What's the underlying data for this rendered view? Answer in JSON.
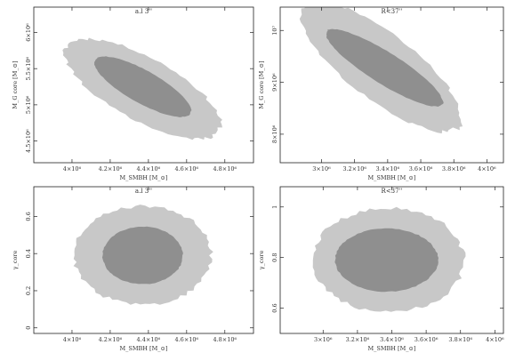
{
  "colors": {
    "outer_region": "#c8c8c8",
    "inner_region": "#8f8f8f",
    "frame": "#222222",
    "text": "#333333",
    "background": "#ffffff"
  },
  "chart_data": [
    {
      "type": "contour",
      "title": "a.l 3''",
      "xlabel": "M_SMBH [M_⊙]",
      "ylabel": "M_G core [M_⊙]",
      "x_ticks": [
        {
          "value": 4.0,
          "label": "4×10⁶"
        },
        {
          "value": 4.2,
          "label": "4.2×10⁶"
        },
        {
          "value": 4.4,
          "label": "4.4×10⁶"
        },
        {
          "value": 4.6,
          "label": "4.6×10⁶"
        },
        {
          "value": 4.8,
          "label": "4.8×10⁶"
        }
      ],
      "y_ticks": [
        {
          "value": 4.5,
          "label": "4.5×10⁶"
        },
        {
          "value": 5.0,
          "label": "5×10⁶"
        },
        {
          "value": 5.5,
          "label": "5.5×10⁶"
        },
        {
          "value": 6.0,
          "label": "6×10⁶"
        }
      ],
      "xlim": [
        3.8,
        4.95
      ],
      "ylim": [
        4.2,
        6.35
      ],
      "contours": [
        {
          "level": "outer",
          "center": [
            4.37,
            5.22
          ],
          "semi_major": [
            0.4,
            -0.58
          ],
          "semi_minor_len": 0.165
        },
        {
          "level": "inner",
          "center": [
            4.37,
            5.25
          ],
          "semi_major": [
            0.25,
            -0.37
          ],
          "semi_minor_len": 0.085
        }
      ]
    },
    {
      "type": "contour",
      "title": "R<37''",
      "xlabel": "M_SMBH [M_⊙]",
      "ylabel": "M_G core [M_⊙]",
      "x_ticks": [
        {
          "value": 3.0,
          "label": "3×10⁶"
        },
        {
          "value": 3.2,
          "label": "3.2×10⁶"
        },
        {
          "value": 3.4,
          "label": "3.4×10⁶"
        },
        {
          "value": 3.6,
          "label": "3.6×10⁶"
        },
        {
          "value": 3.8,
          "label": "3.8×10⁶"
        },
        {
          "value": 4.0,
          "label": "4×10⁶"
        }
      ],
      "y_ticks": [
        {
          "value": 8.0,
          "label": "8×10⁶"
        },
        {
          "value": 9.0,
          "label": "9×10⁶"
        },
        {
          "value": 10.0,
          "label": "10⁷"
        }
      ],
      "xlim": [
        2.75,
        4.1
      ],
      "ylim": [
        7.45,
        10.45
      ],
      "contours": [
        {
          "level": "outer",
          "center": [
            3.36,
            9.3
          ],
          "semi_major": [
            0.47,
            -1.15
          ],
          "semi_minor_len": 0.2
        },
        {
          "level": "inner",
          "center": [
            3.38,
            9.28
          ],
          "semi_major": [
            0.35,
            -0.7
          ],
          "semi_minor_len": 0.095
        }
      ]
    },
    {
      "type": "contour",
      "title": "a.l 3''",
      "xlabel": "M_SMBH [M_⊙]",
      "ylabel": "γ_core",
      "x_ticks": [
        {
          "value": 4.0,
          "label": "4×10⁶"
        },
        {
          "value": 4.2,
          "label": "4.2×10⁶"
        },
        {
          "value": 4.4,
          "label": "4.4×10⁶"
        },
        {
          "value": 4.6,
          "label": "4.6×10⁶"
        },
        {
          "value": 4.8,
          "label": "4.8×10⁶"
        }
      ],
      "y_ticks": [
        {
          "value": 0.0,
          "label": "0"
        },
        {
          "value": 0.2,
          "label": "0.2"
        },
        {
          "value": 0.4,
          "label": "0.4"
        },
        {
          "value": 0.6,
          "label": "0.6"
        }
      ],
      "xlim": [
        3.8,
        4.95
      ],
      "ylim": [
        -0.03,
        0.76
      ],
      "contours": [
        {
          "level": "outer",
          "center": [
            4.37,
            0.39
          ],
          "semi_major": [
            0.36,
            0.0
          ],
          "semi_minor_len": 0.265
        },
        {
          "level": "inner",
          "center": [
            4.37,
            0.39
          ],
          "semi_major": [
            0.21,
            0.0
          ],
          "semi_minor_len": 0.155
        }
      ]
    },
    {
      "type": "contour",
      "title": "R<37''",
      "xlabel": "M_SMBH [M_⊙]",
      "ylabel": "γ_core",
      "x_ticks": [
        {
          "value": 3.0,
          "label": "3×10⁶"
        },
        {
          "value": 3.2,
          "label": "3.2×10⁶"
        },
        {
          "value": 3.4,
          "label": "3.4×10⁶"
        },
        {
          "value": 3.6,
          "label": "3.6×10⁶"
        },
        {
          "value": 3.8,
          "label": "3.8×10⁶"
        },
        {
          "value": 4.0,
          "label": "4×10⁶"
        }
      ],
      "y_ticks": [
        {
          "value": 0.6,
          "label": "0.6"
        },
        {
          "value": 0.8,
          "label": "0.8"
        },
        {
          "value": 1.0,
          "label": "1"
        }
      ],
      "xlim": [
        2.75,
        4.05
      ],
      "ylim": [
        0.5,
        1.08
      ],
      "contours": [
        {
          "level": "outer",
          "center": [
            3.38,
            0.79
          ],
          "semi_major": [
            0.44,
            0.0
          ],
          "semi_minor_len": 0.205
        },
        {
          "level": "inner",
          "center": [
            3.37,
            0.79
          ],
          "semi_major": [
            0.3,
            0.0
          ],
          "semi_minor_len": 0.125
        }
      ]
    }
  ]
}
